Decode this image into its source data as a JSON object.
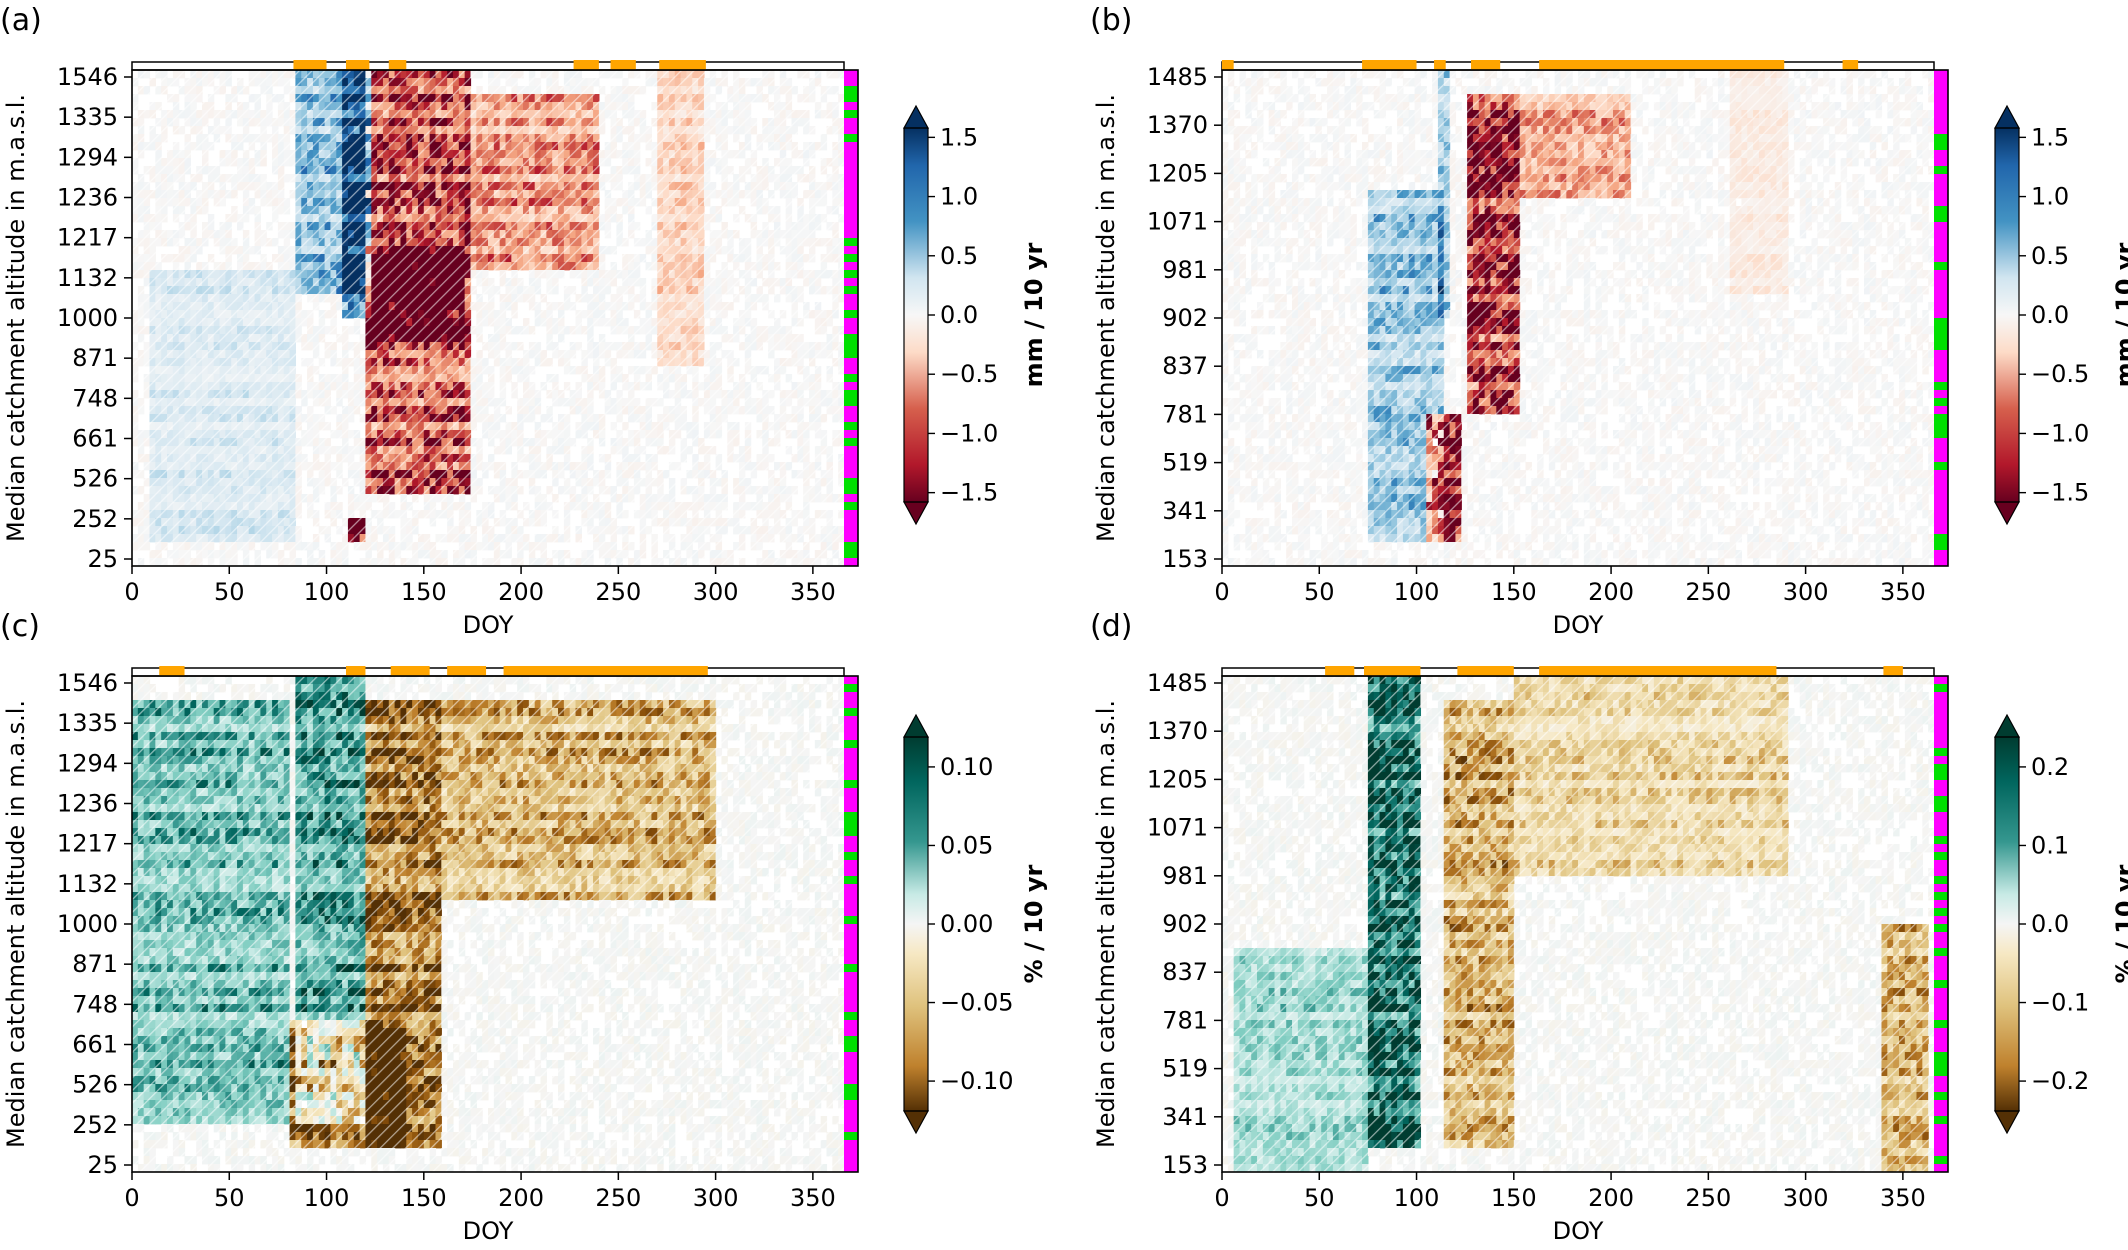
{
  "chart_data": [
    {
      "panel": "(a)",
      "type": "heatmap",
      "xlabel": "DOY",
      "ylabel": "Median catchment altitude in m.a.s.l.",
      "xticks": [
        0,
        50,
        100,
        150,
        200,
        250,
        300,
        350
      ],
      "xlim": [
        0,
        366
      ],
      "ytick_labels": [
        "1546",
        "1335",
        "1294",
        "1236",
        "1217",
        "1132",
        "1000",
        "871",
        "748",
        "661",
        "526",
        "252",
        "25"
      ],
      "colorbar": {
        "label": "mm / 10 yr",
        "ticks": [
          "1.5",
          "1.0",
          "0.5",
          "0.0",
          "−0.5",
          "−1.0",
          "−1.5"
        ],
        "vmin": -1.5,
        "vmax": 1.5,
        "palette": "RdBu",
        "extend": "both"
      },
      "significant_periods_top": [
        [
          83,
          100
        ],
        [
          110,
          122
        ],
        [
          132,
          141
        ],
        [
          227,
          240
        ],
        [
          246,
          259
        ],
        [
          271,
          295
        ]
      ],
      "features": [
        {
          "x": [
            85,
            122
          ],
          "rows": [
            0.55,
            1.0
          ],
          "value": 0.7
        },
        {
          "x": [
            108,
            122
          ],
          "rows": [
            0.5,
            1.0
          ],
          "value": 1.3
        },
        {
          "x": [
            10,
            85
          ],
          "rows": [
            0.05,
            0.6
          ],
          "value": 0.25
        },
        {
          "x": [
            120,
            175
          ],
          "rows": [
            0.15,
            1.0
          ],
          "value": -1.2
        },
        {
          "x": [
            120,
            170
          ],
          "rows": [
            0.45,
            0.65
          ],
          "value": -1.5
        },
        {
          "x": [
            170,
            240
          ],
          "rows": [
            0.6,
            0.95
          ],
          "value": -0.7
        },
        {
          "x": [
            270,
            295
          ],
          "rows": [
            0.4,
            1.0
          ],
          "value": -0.35
        },
        {
          "x": [
            110,
            120
          ],
          "rows": [
            0.05,
            0.1
          ],
          "value": -1.5
        }
      ]
    },
    {
      "panel": "(b)",
      "type": "heatmap",
      "xlabel": "DOY",
      "ylabel": "Median catchment altitude in m.a.s.l.",
      "xticks": [
        0,
        50,
        100,
        150,
        200,
        250,
        300,
        350
      ],
      "xlim": [
        0,
        366
      ],
      "ytick_labels": [
        "1485",
        "1370",
        "1205",
        "1071",
        "981",
        "902",
        "837",
        "781",
        "519",
        "341",
        "153"
      ],
      "colorbar": {
        "label": "mm / 10 yr",
        "ticks": [
          "1.5",
          "1.0",
          "0.5",
          "0.0",
          "−0.5",
          "−1.0",
          "−1.5"
        ],
        "vmin": -1.5,
        "vmax": 1.5,
        "palette": "RdBu",
        "extend": "both"
      },
      "significant_periods_top": [
        [
          0,
          6
        ],
        [
          72,
          100
        ],
        [
          109,
          115
        ],
        [
          128,
          143
        ],
        [
          163,
          289
        ],
        [
          319,
          327
        ]
      ],
      "features": [
        {
          "x": [
            75,
            115
          ],
          "rows": [
            0.05,
            0.75
          ],
          "value": 0.6
        },
        {
          "x": [
            110,
            118
          ],
          "rows": [
            0.5,
            1.0
          ],
          "value": 0.6
        },
        {
          "x": [
            105,
            122
          ],
          "rows": [
            0.05,
            0.3
          ],
          "value": -1.5
        },
        {
          "x": [
            125,
            152
          ],
          "rows": [
            0.3,
            0.95
          ],
          "value": -1.4
        },
        {
          "x": [
            152,
            210
          ],
          "rows": [
            0.75,
            0.95
          ],
          "value": -0.6
        },
        {
          "x": [
            260,
            290
          ],
          "rows": [
            0.55,
            1.0
          ],
          "value": -0.15
        }
      ]
    },
    {
      "panel": "(c)",
      "type": "heatmap",
      "xlabel": "DOY",
      "ylabel": "Median catchment altitude in m.a.s.l.",
      "xticks": [
        0,
        50,
        100,
        150,
        200,
        250,
        300,
        350
      ],
      "xlim": [
        0,
        366
      ],
      "ytick_labels": [
        "1546",
        "1335",
        "1294",
        "1236",
        "1217",
        "1132",
        "1000",
        "871",
        "748",
        "661",
        "526",
        "252",
        "25"
      ],
      "colorbar": {
        "label": "% / 10 yr",
        "ticks": [
          "0.10",
          "0.05",
          "0.00",
          "−0.05",
          "−0.10"
        ],
        "vmin": -0.12,
        "vmax": 0.12,
        "palette": "BrBG",
        "extend": "both"
      },
      "significant_periods_top": [
        [
          14,
          27
        ],
        [
          110,
          120
        ],
        [
          133,
          153
        ],
        [
          162,
          182
        ],
        [
          191,
          296
        ]
      ],
      "features": [
        {
          "x": [
            0,
            80
          ],
          "rows": [
            0.1,
            0.95
          ],
          "value": 0.06
        },
        {
          "x": [
            85,
            120
          ],
          "rows": [
            0.1,
            1.0
          ],
          "value": 0.08
        },
        {
          "x": [
            120,
            160
          ],
          "rows": [
            0.05,
            0.95
          ],
          "value": -0.1
        },
        {
          "x": [
            160,
            300
          ],
          "rows": [
            0.55,
            0.95
          ],
          "value": -0.06
        },
        {
          "x": [
            80,
            140
          ],
          "rows": [
            0.05,
            0.3
          ],
          "value": -0.1
        }
      ]
    },
    {
      "panel": "(d)",
      "type": "heatmap",
      "xlabel": "DOY",
      "ylabel": "Median catchment altitude in m.a.s.l.",
      "xticks": [
        0,
        50,
        100,
        150,
        200,
        250,
        300,
        350
      ],
      "xlim": [
        0,
        366
      ],
      "ytick_labels": [
        "1485",
        "1370",
        "1205",
        "1071",
        "981",
        "902",
        "837",
        "781",
        "519",
        "341",
        "153"
      ],
      "colorbar": {
        "label": "% / 10 yr",
        "ticks": [
          "0.2",
          "0.1",
          "0.0",
          "−0.1",
          "−0.2"
        ],
        "vmin": -0.22,
        "vmax": 0.22,
        "palette": "BrBG",
        "extend": "both"
      },
      "significant_periods_top": [
        [
          53,
          68
        ],
        [
          73,
          102
        ],
        [
          121,
          150
        ],
        [
          163,
          285
        ],
        [
          340,
          350
        ]
      ],
      "features": [
        {
          "x": [
            75,
            102
          ],
          "rows": [
            0.05,
            1.0
          ],
          "value": 0.22
        },
        {
          "x": [
            5,
            75
          ],
          "rows": [
            0.0,
            0.45
          ],
          "value": 0.08
        },
        {
          "x": [
            115,
            150
          ],
          "rows": [
            0.05,
            0.95
          ],
          "value": -0.12
        },
        {
          "x": [
            150,
            290
          ],
          "rows": [
            0.6,
            1.0
          ],
          "value": -0.07
        },
        {
          "x": [
            340,
            362
          ],
          "rows": [
            0.0,
            0.5
          ],
          "value": -0.12
        }
      ]
    }
  ]
}
